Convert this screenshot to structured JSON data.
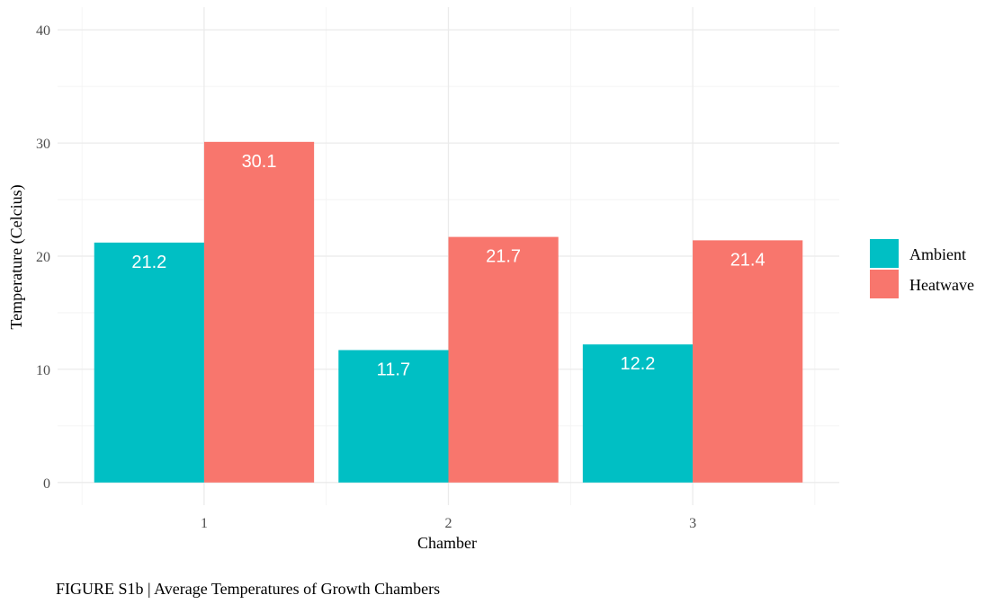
{
  "chart_data": {
    "type": "bar",
    "categories": [
      "1",
      "2",
      "3"
    ],
    "series": [
      {
        "name": "Ambient",
        "values": [
          21.2,
          11.7,
          12.2
        ],
        "labels": [
          "21.2",
          "11.7",
          "12.2"
        ],
        "color": "#00BFC4"
      },
      {
        "name": "Heatwave",
        "values": [
          30.1,
          21.7,
          21.4
        ],
        "labels": [
          "30.1",
          "21.7",
          "21.4"
        ],
        "color": "#F8766D"
      }
    ],
    "xlabel": "Chamber",
    "ylabel": "Temperature (Celcius)",
    "ylim": [
      -2,
      42
    ],
    "yticks": [
      0,
      10,
      20,
      30,
      40
    ],
    "ytick_labels": [
      "0",
      "10",
      "20",
      "30",
      "40"
    ],
    "grid": true,
    "legend_position": "right"
  },
  "caption": "FIGURE S1b | Average Temperatures of Growth Chambers"
}
